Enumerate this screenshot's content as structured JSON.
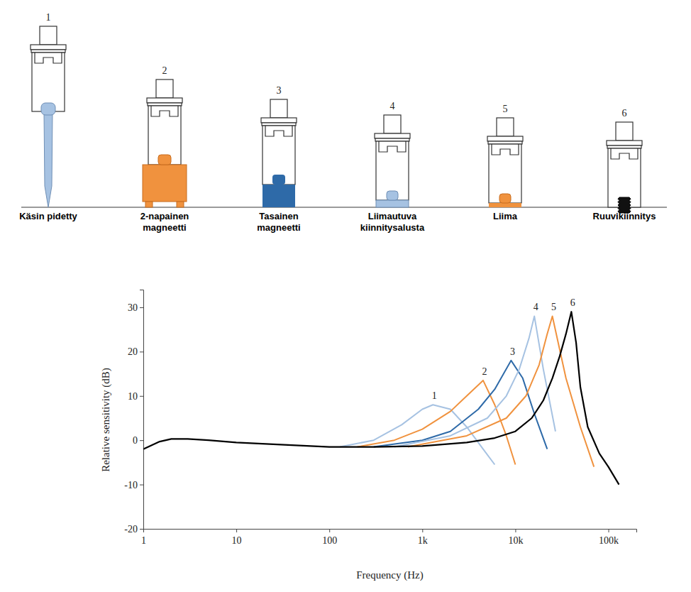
{
  "mounts": [
    {
      "number": 1,
      "label_lines": [
        "Käsin pidetty"
      ]
    },
    {
      "number": 2,
      "label_lines": [
        "2-napainen",
        "magneetti"
      ]
    },
    {
      "number": 3,
      "label_lines": [
        "Tasainen",
        "magneetti"
      ]
    },
    {
      "number": 4,
      "label_lines": [
        "Liimautuva",
        "kiinnitysalusta"
      ]
    },
    {
      "number": 5,
      "label_lines": [
        "Liima"
      ]
    },
    {
      "number": 6,
      "label_lines": [
        "Ruuvikiinnitys"
      ]
    }
  ],
  "chart_data": {
    "type": "line",
    "x_label": "Frequency (Hz)",
    "y_label": "Relative sensitivity (dB)",
    "log": "x",
    "grid": false,
    "xlim": [
      1,
      200000
    ],
    "xticks": [
      1,
      10,
      100,
      {
        "value": 1000,
        "label": "1k"
      },
      {
        "value": 10000,
        "label": "10k"
      },
      {
        "value": 100000,
        "label": "100k"
      }
    ],
    "ylim": [
      -20,
      34
    ],
    "yticks": [
      -20,
      -10,
      0,
      10,
      20,
      30
    ],
    "series": [
      {
        "name": "1",
        "color": "#a6c2e2",
        "x": [
          130,
          300,
          600,
          1000,
          1300,
          2000,
          3000,
          4500,
          6000
        ],
        "values": [
          -1.5,
          0,
          3.5,
          7,
          8,
          7,
          3,
          -2,
          -5.5
        ]
      },
      {
        "name": "2",
        "color": "#f0923e",
        "x": [
          200,
          500,
          1000,
          2000,
          3000,
          4500,
          6000,
          8000,
          10000
        ],
        "values": [
          -1.5,
          0,
          2.5,
          6.5,
          10,
          13.5,
          8,
          1,
          -5.5
        ]
      },
      {
        "name": "3",
        "color": "#2e6aa8",
        "x": [
          300,
          1000,
          2000,
          4000,
          6000,
          9000,
          12000,
          16000,
          22000
        ],
        "values": [
          -1.5,
          0,
          2,
          7,
          11.5,
          18,
          14,
          6,
          -2
        ]
      },
      {
        "name": "4",
        "color": "#a6c2e2",
        "x": [
          500,
          2000,
          5000,
          8000,
          11000,
          14000,
          16000,
          20000,
          27000
        ],
        "values": [
          -1.5,
          1,
          5,
          10,
          16,
          23,
          28,
          16,
          2
        ]
      },
      {
        "name": "5",
        "color": "#f0923e",
        "x": [
          700,
          3000,
          8000,
          13000,
          18000,
          22000,
          25000,
          35000,
          50000,
          70000
        ],
        "values": [
          -1.5,
          1,
          5,
          10,
          17,
          24,
          28,
          14,
          3,
          -6
        ]
      },
      {
        "name": "6",
        "color": "#000000",
        "x": [
          1,
          1.5,
          2,
          3,
          5,
          10,
          30,
          100,
          300,
          1000,
          3000,
          6000,
          10000,
          15000,
          20000,
          25000,
          30000,
          35000,
          40000,
          45000,
          50000,
          60000,
          80000,
          100000,
          130000
        ],
        "values": [
          -2,
          -0.3,
          0.3,
          0.3,
          0,
          -0.5,
          -1,
          -1.5,
          -1.5,
          -1.3,
          -0.5,
          0.5,
          2,
          5,
          9,
          14,
          19,
          24,
          29,
          22,
          12,
          3,
          -3,
          -6,
          -10
        ]
      }
    ]
  }
}
